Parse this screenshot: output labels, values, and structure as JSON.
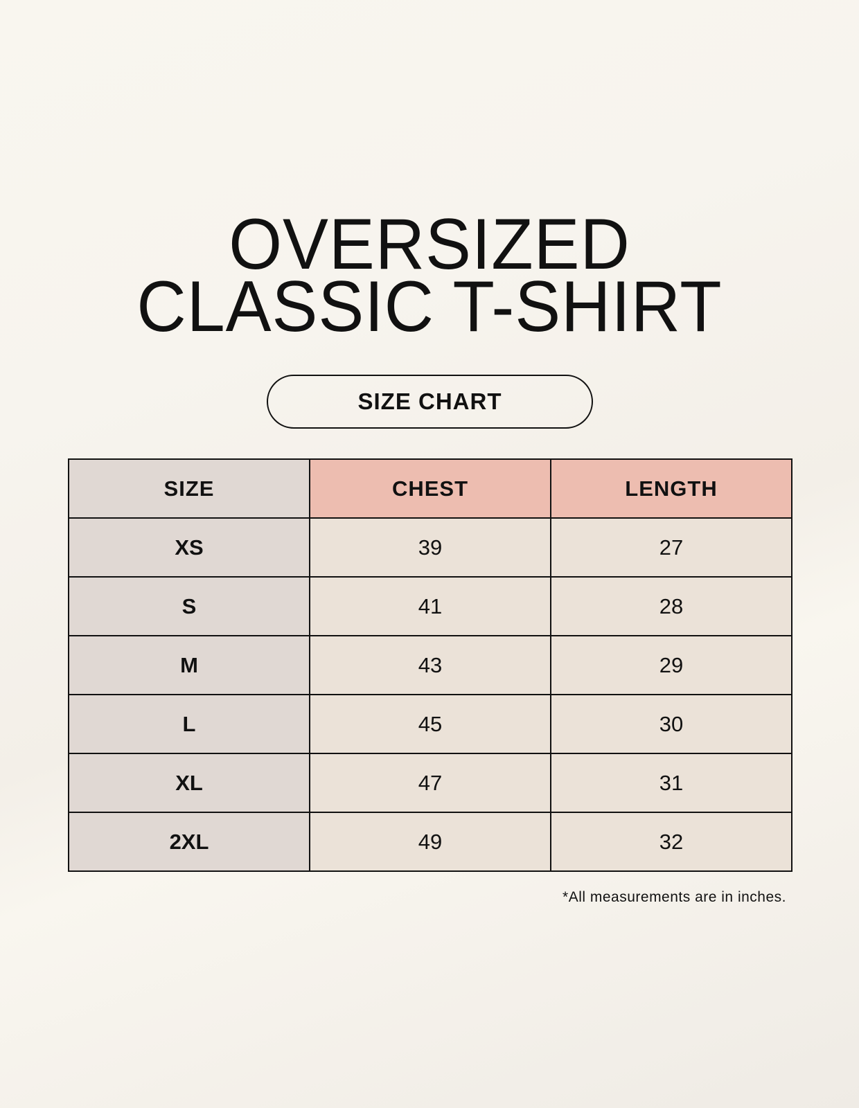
{
  "title": {
    "line1": "OVERSIZED",
    "line2": "CLASSIC T-SHIRT"
  },
  "badge": "SIZE CHART",
  "table": {
    "headers": [
      "SIZE",
      "CHEST",
      "LENGTH"
    ],
    "rows": [
      [
        "XS",
        "39",
        "27"
      ],
      [
        "S",
        "41",
        "28"
      ],
      [
        "M",
        "43",
        "29"
      ],
      [
        "L",
        "45",
        "30"
      ],
      [
        "XL",
        "47",
        "31"
      ],
      [
        "2XL",
        "49",
        "32"
      ]
    ]
  },
  "footnote": "*All measurements are in inches.",
  "colors": {
    "background": "#f8f5ef",
    "size_column": "#e0d8d3",
    "header_accent": "#edbdb0",
    "cell": "#ebe2d8"
  }
}
